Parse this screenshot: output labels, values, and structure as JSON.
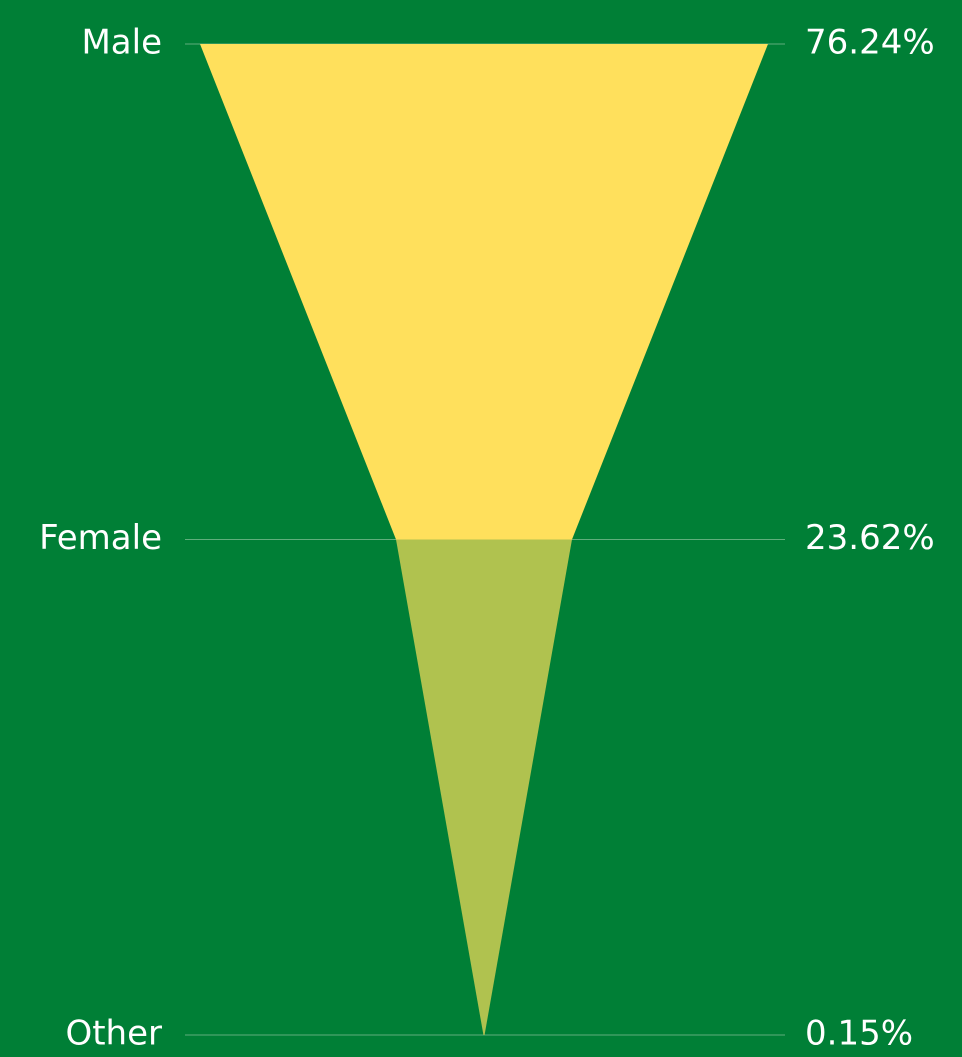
{
  "chart_data": {
    "type": "funnel",
    "categories": [
      "Male",
      "Female",
      "Other"
    ],
    "values": [
      76.24,
      23.62,
      0.15
    ],
    "value_labels": [
      "76.24%",
      "23.62%",
      "0.15%"
    ],
    "colors": [
      "#FFE05C",
      "#B0C24F",
      "#B0C24F"
    ],
    "background": "#007F36"
  }
}
